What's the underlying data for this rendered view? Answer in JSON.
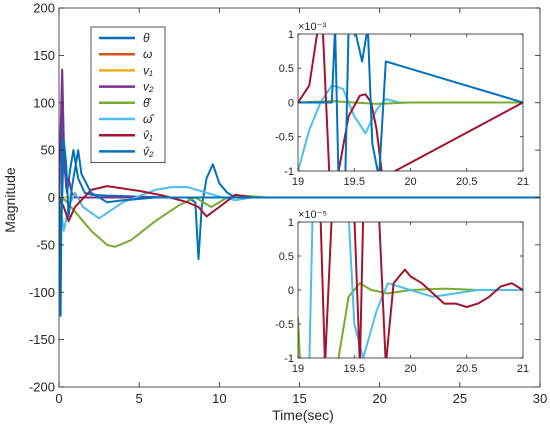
{
  "chart_data": [
    {
      "type": "line",
      "title": "",
      "xlabel": "Time(sec)",
      "ylabel": "Magnitude",
      "xlim": [
        0,
        30
      ],
      "ylim": [
        -200,
        200
      ],
      "xticks": [
        0,
        5,
        10,
        15,
        20,
        25,
        30
      ],
      "xtick_labels": [
        "0",
        "5",
        "10",
        "15",
        "20",
        "25",
        "30"
      ],
      "yticks": [
        -200,
        -150,
        -100,
        -50,
        0,
        50,
        100,
        150,
        200
      ],
      "ytick_labels": [
        "-200",
        "-150",
        "-100",
        "-50",
        "0",
        "50",
        "100",
        "150",
        "200"
      ],
      "grid": false,
      "legend_position": "top-left",
      "series": [
        {
          "name": "θ",
          "color": "#0072BD",
          "x": [
            0,
            0.1,
            0.2,
            0.3,
            0.5,
            0.7,
            0.9,
            1.2,
            1.6,
            2.0,
            3.0,
            5.0,
            7.0,
            8.0,
            8.5,
            8.7,
            8.9,
            9.2,
            9.6,
            10.0,
            10.5,
            11.0,
            12.0,
            15.0,
            30.0
          ],
          "y": [
            0,
            -125,
            95,
            40,
            5,
            30,
            50,
            20,
            5,
            3,
            2,
            1,
            0,
            0,
            -5,
            -65,
            -10,
            20,
            35,
            15,
            5,
            0,
            0,
            0,
            0
          ]
        },
        {
          "name": "ω",
          "color": "#D95319",
          "x": [
            0,
            0.5,
            1.0,
            2.0,
            4.0,
            30.0
          ],
          "y": [
            0,
            0,
            0,
            0,
            0,
            0
          ]
        },
        {
          "name": "v₁",
          "color": "#EDB120",
          "x": [
            0,
            2.0,
            5.0,
            10.0,
            30.0
          ],
          "y": [
            0,
            0,
            0,
            0,
            0
          ]
        },
        {
          "name": "v₂",
          "color": "#7E2F8E",
          "x": [
            0,
            0.1,
            0.2,
            0.3,
            0.45,
            0.6,
            0.8,
            1.0,
            1.5,
            30.0
          ],
          "y": [
            0,
            70,
            135,
            60,
            10,
            20,
            5,
            0,
            0,
            0
          ]
        },
        {
          "name": "θ̂",
          "color": "#77AC30",
          "x": [
            0,
            0.4,
            1.0,
            2.0,
            3.0,
            3.5,
            4.5,
            6.0,
            7.5,
            8.5,
            9.5,
            10.5,
            11.5,
            13.0,
            30.0
          ],
          "y": [
            0,
            -3,
            -15,
            -35,
            -50,
            -52,
            -45,
            -25,
            -8,
            0,
            -10,
            0,
            2,
            0,
            0
          ]
        },
        {
          "name": "ω̂",
          "color": "#4DBEEE",
          "x": [
            0,
            0.3,
            0.6,
            1.0,
            1.5,
            2.5,
            4.0,
            6.0,
            7.0,
            8.0,
            9.0,
            10.0,
            11.0,
            12.0,
            30.0
          ],
          "y": [
            0,
            -35,
            -10,
            5,
            -10,
            -22,
            -5,
            8,
            11,
            11,
            6,
            1,
            -3,
            0,
            0
          ]
        },
        {
          "name": "v̂₁",
          "color": "#A2142F",
          "x": [
            0,
            0.3,
            0.6,
            1.0,
            2.0,
            3.0,
            5.0,
            6.5,
            8.0,
            8.7,
            9.2,
            10.0,
            11.0,
            12.0,
            30.0
          ],
          "y": [
            0,
            -10,
            -25,
            -10,
            8,
            12,
            7,
            2,
            -5,
            -10,
            -20,
            -10,
            3,
            0,
            0
          ]
        },
        {
          "name": "v̂₂",
          "color": "#0072BD",
          "x": [
            0,
            0.15,
            0.3,
            0.45,
            0.6,
            0.8,
            1.0,
            1.2,
            1.4,
            2.0,
            3.0,
            4.0,
            6.0,
            8.0,
            30.0
          ],
          "y": [
            0,
            -30,
            60,
            35,
            -20,
            10,
            30,
            50,
            25,
            5,
            -5,
            -3,
            0,
            0,
            0
          ]
        }
      ]
    },
    {
      "type": "line",
      "xlim": [
        19,
        21
      ],
      "ylim": [
        -1,
        1
      ],
      "y_exponent_label": "×10⁻³",
      "xticks": [
        19,
        19.5,
        20,
        20.5,
        21
      ],
      "xtick_labels": [
        "19",
        "19.5",
        "20",
        "20.5",
        "21"
      ],
      "yticks": [
        -1,
        -0.5,
        0,
        0.5,
        1
      ],
      "ytick_labels": [
        "-1",
        "-0.5",
        "0",
        "0.5",
        "1"
      ],
      "series": [
        {
          "color": "#4DBEEE",
          "x": [
            19.0,
            19.1,
            19.2,
            19.3,
            19.4,
            19.5,
            19.6,
            19.7,
            19.78,
            19.9,
            21.0
          ],
          "y": [
            -1.0,
            -0.4,
            0.0,
            0.25,
            0.2,
            -0.2,
            -0.45,
            -0.1,
            0.05,
            0.0,
            0.0
          ]
        },
        {
          "color": "#77AC30",
          "x": [
            19.0,
            19.3,
            19.5,
            19.7,
            20.0,
            21.0
          ],
          "y": [
            0.0,
            0.02,
            0.0,
            -0.02,
            0.0,
            0.0
          ]
        },
        {
          "color": "#A2142F",
          "x": [
            19.0,
            19.1,
            19.17,
            19.22,
            19.28,
            19.35,
            19.45,
            19.55,
            19.6,
            19.65,
            19.7,
            19.75,
            21.0
          ],
          "y": [
            0.0,
            0.25,
            1.0,
            1.1,
            -1.1,
            -1.1,
            -0.2,
            0.1,
            0.12,
            0.0,
            -0.4,
            -1.1,
            0.0
          ]
        },
        {
          "color": "#0072BD",
          "x": [
            19.0,
            19.2,
            19.3,
            19.33,
            19.36,
            19.42,
            19.45,
            19.5,
            19.57,
            19.62,
            19.66,
            19.72,
            19.78,
            21.0
          ],
          "y": [
            0.0,
            0.0,
            0.0,
            1.1,
            -1.1,
            -1.1,
            1.1,
            1.1,
            0.6,
            1.1,
            -0.6,
            -1.1,
            0.6,
            0.0
          ]
        }
      ]
    },
    {
      "type": "line",
      "xlim": [
        19,
        21
      ],
      "ylim": [
        -1,
        1
      ],
      "y_exponent_label": "×10⁻⁵",
      "xticks": [
        19,
        19.5,
        20,
        20.5,
        21
      ],
      "xtick_labels": [
        "19",
        "19.5",
        "20",
        "20.5",
        "21"
      ],
      "yticks": [
        -1,
        -0.5,
        0,
        0.5,
        1
      ],
      "ytick_labels": [
        "-1",
        "-0.5",
        "0",
        "0.5",
        "1"
      ],
      "series": [
        {
          "color": "#77AC30",
          "x": [
            19.0,
            19.02,
            19.2,
            19.35,
            19.45,
            19.55,
            19.65,
            19.8,
            20.0,
            20.3,
            20.6,
            21.0
          ],
          "y": [
            -0.4,
            -1.1,
            -1.1,
            -1.1,
            -0.1,
            0.1,
            0.0,
            -0.05,
            0.0,
            0.02,
            0.0,
            0.0
          ]
        },
        {
          "color": "#4DBEEE",
          "x": [
            19.0,
            19.1,
            19.13,
            19.45,
            19.5,
            19.58,
            19.7,
            19.8,
            19.9,
            20.0,
            20.2,
            20.4,
            20.6,
            21.0
          ],
          "y": [
            -1.1,
            -1.1,
            1.1,
            1.1,
            -0.5,
            -1.0,
            -0.3,
            0.1,
            0.05,
            0.0,
            -0.1,
            -0.05,
            0.0,
            0.0
          ]
        },
        {
          "color": "#A2142F",
          "x": [
            19.0,
            19.2,
            19.24,
            19.3,
            19.5,
            19.55,
            19.58,
            19.72,
            19.78,
            19.85,
            19.9,
            19.95,
            20.0,
            20.1,
            20.2,
            20.3,
            20.4,
            20.5,
            20.6,
            20.7,
            20.8,
            20.9,
            21.0
          ],
          "y": [
            1.1,
            1.1,
            -1.1,
            1.1,
            1.1,
            -1.1,
            1.1,
            1.1,
            -1.1,
            0.1,
            0.2,
            0.3,
            0.2,
            0.1,
            -0.05,
            -0.2,
            -0.2,
            -0.25,
            -0.2,
            -0.1,
            0.05,
            0.1,
            0.0
          ]
        }
      ]
    }
  ]
}
